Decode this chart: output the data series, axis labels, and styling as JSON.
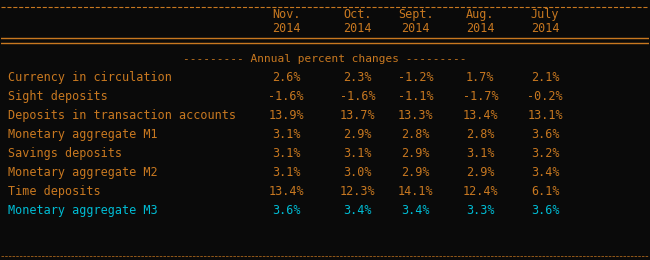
{
  "background_color": "#0a0a0a",
  "text_color_orange": "#c87820",
  "text_color_cyan": "#00bcd4",
  "border_color": "#c87820",
  "header_cols": [
    "Nov.\n2014",
    "Oct.\n2014",
    "Sept.\n2014",
    "Aug.\n2014",
    "July\n2014"
  ],
  "rows": [
    {
      "label": "Currency in circulation",
      "values": [
        "2.6%",
        "2.3%",
        "-1.2%",
        "1.7%",
        "2.1%"
      ],
      "color": "orange"
    },
    {
      "label": "Sight deposits",
      "values": [
        "-1.6%",
        "-1.6%",
        "-1.1%",
        "-1.7%",
        "-0.2%"
      ],
      "color": "orange"
    },
    {
      "label": "Deposits in transaction accounts",
      "values": [
        "13.9%",
        "13.7%",
        "13.3%",
        "13.4%",
        "13.1%"
      ],
      "color": "orange"
    },
    {
      "label": "Monetary aggregate M1",
      "values": [
        "3.1%",
        "2.9%",
        "2.8%",
        "2.8%",
        "3.6%"
      ],
      "color": "orange"
    },
    {
      "label": "Savings deposits",
      "values": [
        "3.1%",
        "3.1%",
        "2.9%",
        "3.1%",
        "3.2%"
      ],
      "color": "orange"
    },
    {
      "label": "Monetary aggregate M2",
      "values": [
        "3.1%",
        "3.0%",
        "2.9%",
        "2.9%",
        "3.4%"
      ],
      "color": "orange"
    },
    {
      "label": "Time deposits",
      "values": [
        "13.4%",
        "12.3%",
        "14.1%",
        "12.4%",
        "6.1%"
      ],
      "color": "orange"
    },
    {
      "label": "Monetary aggregate M3",
      "values": [
        "3.6%",
        "3.4%",
        "3.4%",
        "3.3%",
        "3.6%"
      ],
      "color": "cyan"
    }
  ],
  "annual_label": "--------- Annual percent changes ---------",
  "top_border": "=",
  "figsize": [
    6.5,
    2.6
  ],
  "dpi": 100
}
